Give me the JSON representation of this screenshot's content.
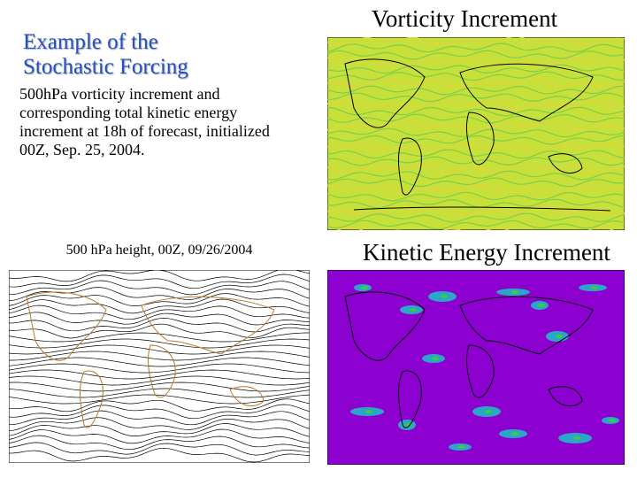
{
  "header": {
    "title_lines": [
      "Example of the",
      "Stochastic Forcing"
    ]
  },
  "description_lines": [
    "500hPa vorticity increment and",
    "corresponding total kinetic energy",
    "increment at 18h of forecast, initialized",
    "00Z, Sep. 25, 2004."
  ],
  "panels": [
    {
      "title": "Vorticity Increment"
    },
    {
      "title": "500 hPa height, 00Z,  09/26/2004"
    },
    {
      "title": "Kinetic Energy Increment"
    }
  ]
}
